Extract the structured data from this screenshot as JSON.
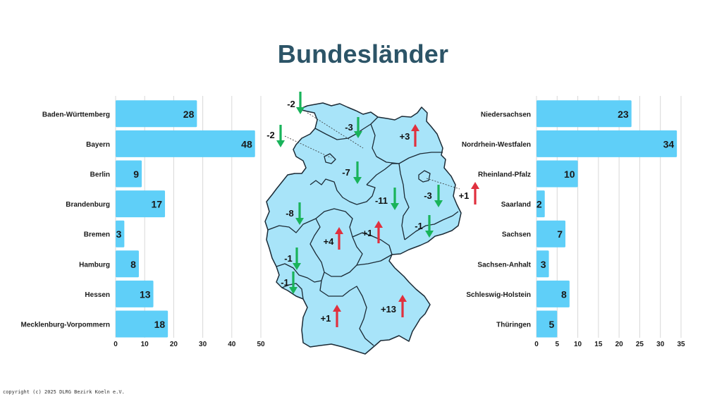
{
  "title": "Bundesländer",
  "copyright": "copyright (c) 2025 DLRG Bezirk Koeln e.V.",
  "colors": {
    "bar": "#5fcff8",
    "title": "#2c5467",
    "map_fill": "#a8e4f9",
    "up": "#e0303e",
    "down": "#19b35a"
  },
  "chart_data": [
    {
      "type": "bar",
      "orientation": "horizontal",
      "categories": [
        "Baden-Württemberg",
        "Bayern",
        "Berlin",
        "Brandenburg",
        "Bremen",
        "Hamburg",
        "Hessen",
        "Mecklenburg-Vorpommern"
      ],
      "values": [
        28,
        48,
        9,
        17,
        3,
        8,
        13,
        18
      ],
      "xlim": [
        0,
        50
      ],
      "xticks": [
        0,
        10,
        20,
        30,
        40,
        50
      ],
      "grid": true
    },
    {
      "type": "bar",
      "orientation": "horizontal",
      "categories": [
        "Niedersachsen",
        "Nordrhein-Westfalen",
        "Rheinland-Pfalz",
        "Saarland",
        "Sachsen",
        "Sachsen-Anhalt",
        "Schleswig-Holstein",
        "Thüringen"
      ],
      "values": [
        23,
        34,
        10,
        2,
        7,
        3,
        8,
        5
      ],
      "xlim": [
        0,
        35
      ],
      "xticks": [
        0,
        5,
        10,
        15,
        20,
        25,
        30,
        35
      ],
      "grid": true
    }
  ],
  "map_changes": [
    {
      "label": "-2",
      "direction": "down"
    },
    {
      "label": "-3",
      "direction": "down"
    },
    {
      "label": "+3",
      "direction": "up"
    },
    {
      "label": "-2",
      "direction": "down"
    },
    {
      "label": "-7",
      "direction": "down"
    },
    {
      "label": "-11",
      "direction": "down"
    },
    {
      "label": "-3",
      "direction": "down"
    },
    {
      "label": "+1",
      "direction": "up"
    },
    {
      "label": "-8",
      "direction": "down"
    },
    {
      "label": "+4",
      "direction": "up"
    },
    {
      "label": "+1",
      "direction": "up"
    },
    {
      "label": "-1",
      "direction": "down"
    },
    {
      "label": "-1",
      "direction": "down"
    },
    {
      "label": "-1",
      "direction": "down"
    },
    {
      "label": "+1",
      "direction": "up"
    },
    {
      "label": "+13",
      "direction": "up"
    }
  ]
}
